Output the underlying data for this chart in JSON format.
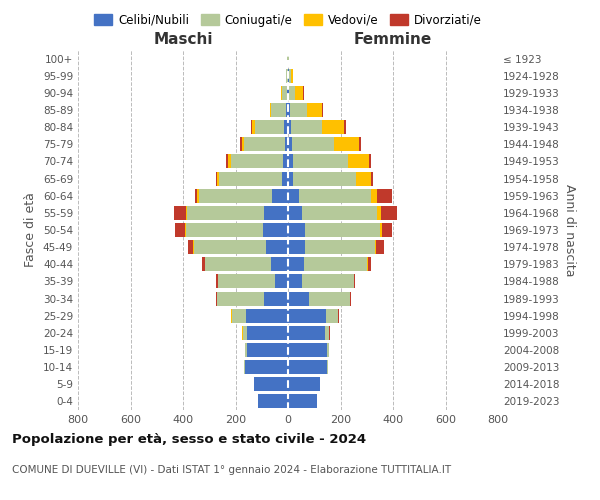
{
  "age_groups": [
    "0-4",
    "5-9",
    "10-14",
    "15-19",
    "20-24",
    "25-29",
    "30-34",
    "35-39",
    "40-44",
    "45-49",
    "50-54",
    "55-59",
    "60-64",
    "65-69",
    "70-74",
    "75-79",
    "80-84",
    "85-89",
    "90-94",
    "95-99",
    "100+"
  ],
  "anni_nascita": [
    "2019-2023",
    "2014-2018",
    "2009-2013",
    "2004-2008",
    "1999-2003",
    "1994-1998",
    "1989-1993",
    "1984-1988",
    "1979-1983",
    "1974-1978",
    "1969-1973",
    "1964-1968",
    "1959-1963",
    "1954-1958",
    "1949-1953",
    "1944-1948",
    "1939-1943",
    "1934-1938",
    "1929-1933",
    "1924-1928",
    "≤ 1923"
  ],
  "maschi": {
    "celibi": [
      115,
      130,
      165,
      155,
      155,
      160,
      90,
      50,
      65,
      85,
      95,
      90,
      60,
      22,
      18,
      12,
      14,
      8,
      4,
      1,
      1
    ],
    "coniugati": [
      0,
      1,
      2,
      10,
      18,
      55,
      180,
      215,
      250,
      275,
      295,
      295,
      280,
      240,
      200,
      155,
      110,
      55,
      20,
      5,
      1
    ],
    "vedovi": [
      0,
      0,
      0,
      0,
      1,
      1,
      1,
      1,
      2,
      2,
      4,
      4,
      6,
      10,
      12,
      10,
      12,
      5,
      3,
      1,
      0
    ],
    "divorziati": [
      0,
      0,
      0,
      0,
      1,
      2,
      4,
      8,
      12,
      20,
      35,
      45,
      10,
      4,
      5,
      5,
      4,
      1,
      1,
      0,
      0
    ]
  },
  "femmine": {
    "nubili": [
      110,
      120,
      150,
      150,
      140,
      145,
      80,
      55,
      60,
      65,
      65,
      55,
      40,
      20,
      18,
      14,
      10,
      6,
      3,
      2,
      1
    ],
    "coniugate": [
      0,
      1,
      2,
      8,
      18,
      45,
      155,
      195,
      240,
      265,
      285,
      285,
      275,
      240,
      210,
      160,
      120,
      65,
      25,
      10,
      1
    ],
    "vedove": [
      0,
      0,
      0,
      0,
      0,
      1,
      1,
      2,
      3,
      6,
      8,
      14,
      25,
      55,
      80,
      95,
      85,
      60,
      30,
      8,
      1
    ],
    "divorziate": [
      0,
      0,
      0,
      0,
      1,
      2,
      4,
      5,
      14,
      30,
      40,
      60,
      55,
      8,
      10,
      8,
      5,
      3,
      2,
      0,
      0
    ]
  },
  "colors": {
    "celibi": "#4472c4",
    "coniugati": "#b5c99a",
    "vedovi": "#ffc000",
    "divorziati": "#c0392b"
  },
  "title_main": "Popolazione per età, sesso e stato civile - 2024",
  "title_sub": "COMUNE DI DUEVILLE (VI) - Dati ISTAT 1° gennaio 2024 - Elaborazione TUTTITALIA.IT",
  "xlim": 800,
  "xlabel_left": "Maschi",
  "xlabel_right": "Femmine",
  "ylabel": "Fasce di età",
  "ylabel_right": "Anni di nascita",
  "legend_labels": [
    "Celibi/Nubili",
    "Coniugati/e",
    "Vedovi/e",
    "Divorziati/e"
  ],
  "bg_color": "#ffffff",
  "grid_color": "#bbbbbb"
}
